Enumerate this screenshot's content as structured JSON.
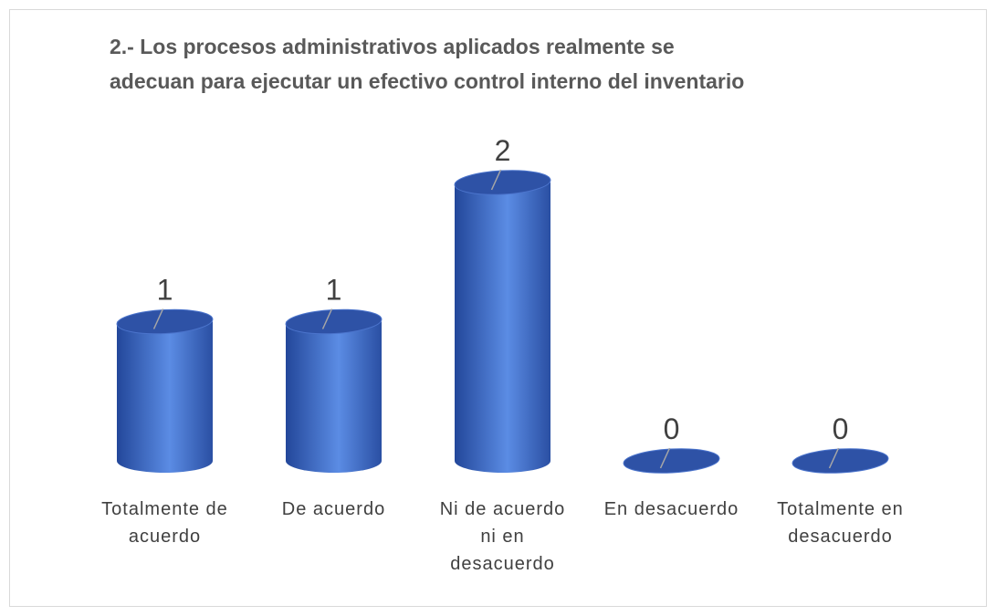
{
  "chart_data": {
    "type": "bar",
    "title": "2.- Los procesos administrativos aplicados realmente se\nadecuan para ejecutar un efectivo control interno del inventario",
    "categories": [
      "Totalmente de\nacuerdo",
      "De acuerdo",
      "Ni de acuerdo\nni en\ndesacuerdo",
      "En desacuerdo",
      "Totalmente en\ndesacuerdo"
    ],
    "values": [
      1,
      1,
      2,
      0,
      0
    ],
    "color": "#3a64c0"
  }
}
